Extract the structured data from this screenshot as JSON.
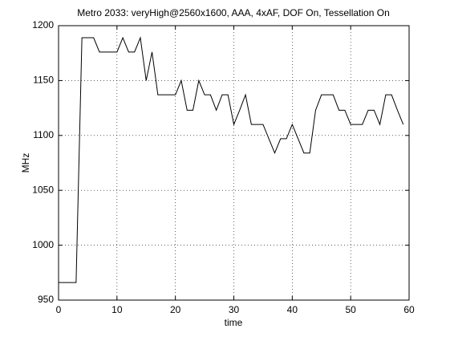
{
  "chart_data": {
    "type": "line",
    "title": "Metro 2033: veryHigh@2560x1600, AAA, 4xAF, DOF On, Tessellation On",
    "xlabel": "time",
    "ylabel": "MHz",
    "x": [
      0,
      1,
      2,
      3,
      4,
      5,
      6,
      7,
      8,
      9,
      10,
      11,
      12,
      13,
      14,
      15,
      16,
      17,
      18,
      19,
      20,
      21,
      22,
      23,
      24,
      25,
      26,
      27,
      28,
      29,
      30,
      31,
      32,
      33,
      34,
      35,
      36,
      37,
      38,
      39,
      40,
      41,
      42,
      43,
      44,
      45,
      46,
      47,
      48,
      49,
      50,
      51,
      52,
      53,
      54,
      55,
      56,
      57,
      58,
      59
    ],
    "series": [
      {
        "name": "MHz",
        "color": "#000000",
        "values": [
          966,
          966,
          966,
          966,
          1189,
          1189,
          1189,
          1176,
          1176,
          1176,
          1176,
          1189,
          1176,
          1176,
          1189,
          1150,
          1176,
          1137,
          1137,
          1137,
          1137,
          1150,
          1123,
          1123,
          1150,
          1137,
          1137,
          1123,
          1137,
          1137,
          1110,
          1123,
          1137,
          1110,
          1110,
          1110,
          1097,
          1084,
          1097,
          1097,
          1110,
          1097,
          1084,
          1084,
          1123,
          1137,
          1137,
          1137,
          1123,
          1123,
          1110,
          1110,
          1110,
          1123,
          1123,
          1110,
          1137,
          1137,
          1123,
          1110
        ]
      }
    ],
    "xlim": [
      0,
      60
    ],
    "xticks": [
      0,
      10,
      20,
      30,
      40,
      50,
      60
    ],
    "ylim": [
      950,
      1200
    ],
    "yticks": [
      950,
      1000,
      1050,
      1100,
      1150,
      1200
    ],
    "grid": true
  }
}
